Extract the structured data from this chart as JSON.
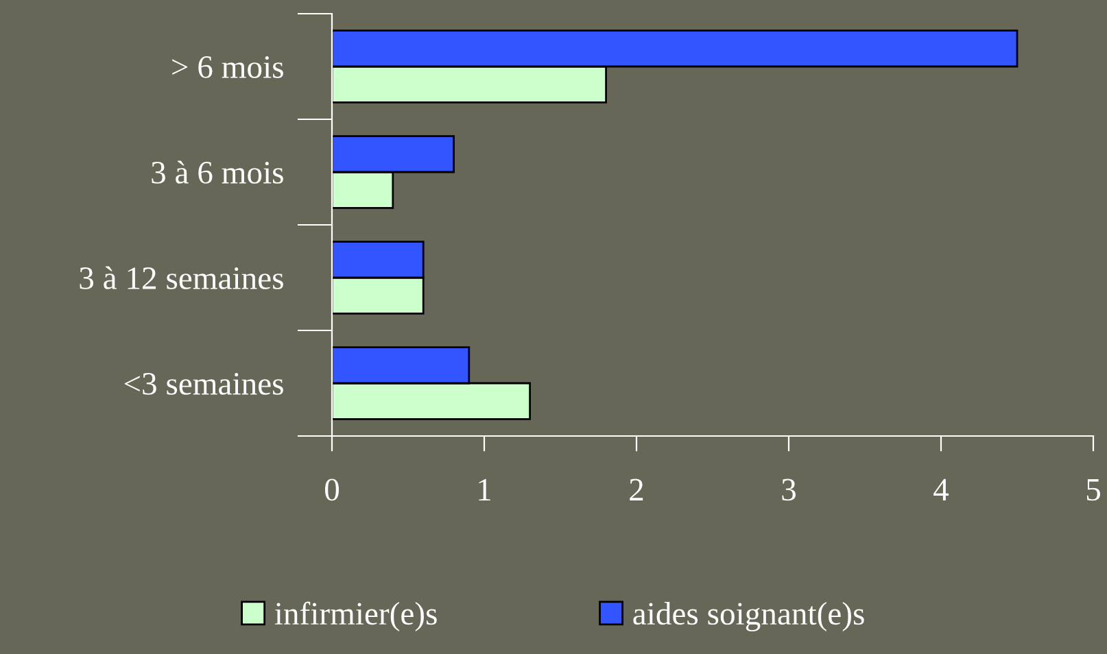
{
  "chart_data": {
    "type": "bar",
    "orientation": "horizontal",
    "categories": [
      "> 6 mois",
      "3 à 6 mois",
      "3 à 12 semaines",
      "<3 semaines"
    ],
    "series": [
      {
        "name": "infirmier(e)s",
        "color": "#ccffcc",
        "values": [
          1.8,
          0.4,
          0.6,
          1.3
        ]
      },
      {
        "name": "aides soignant(e)s",
        "color": "#3355ff",
        "values": [
          4.5,
          0.8,
          0.6,
          0.9
        ]
      }
    ],
    "xlim": [
      0,
      5
    ],
    "xticks": [
      0,
      1,
      2,
      3,
      4,
      5
    ],
    "grid": false,
    "legend": "bottom"
  }
}
